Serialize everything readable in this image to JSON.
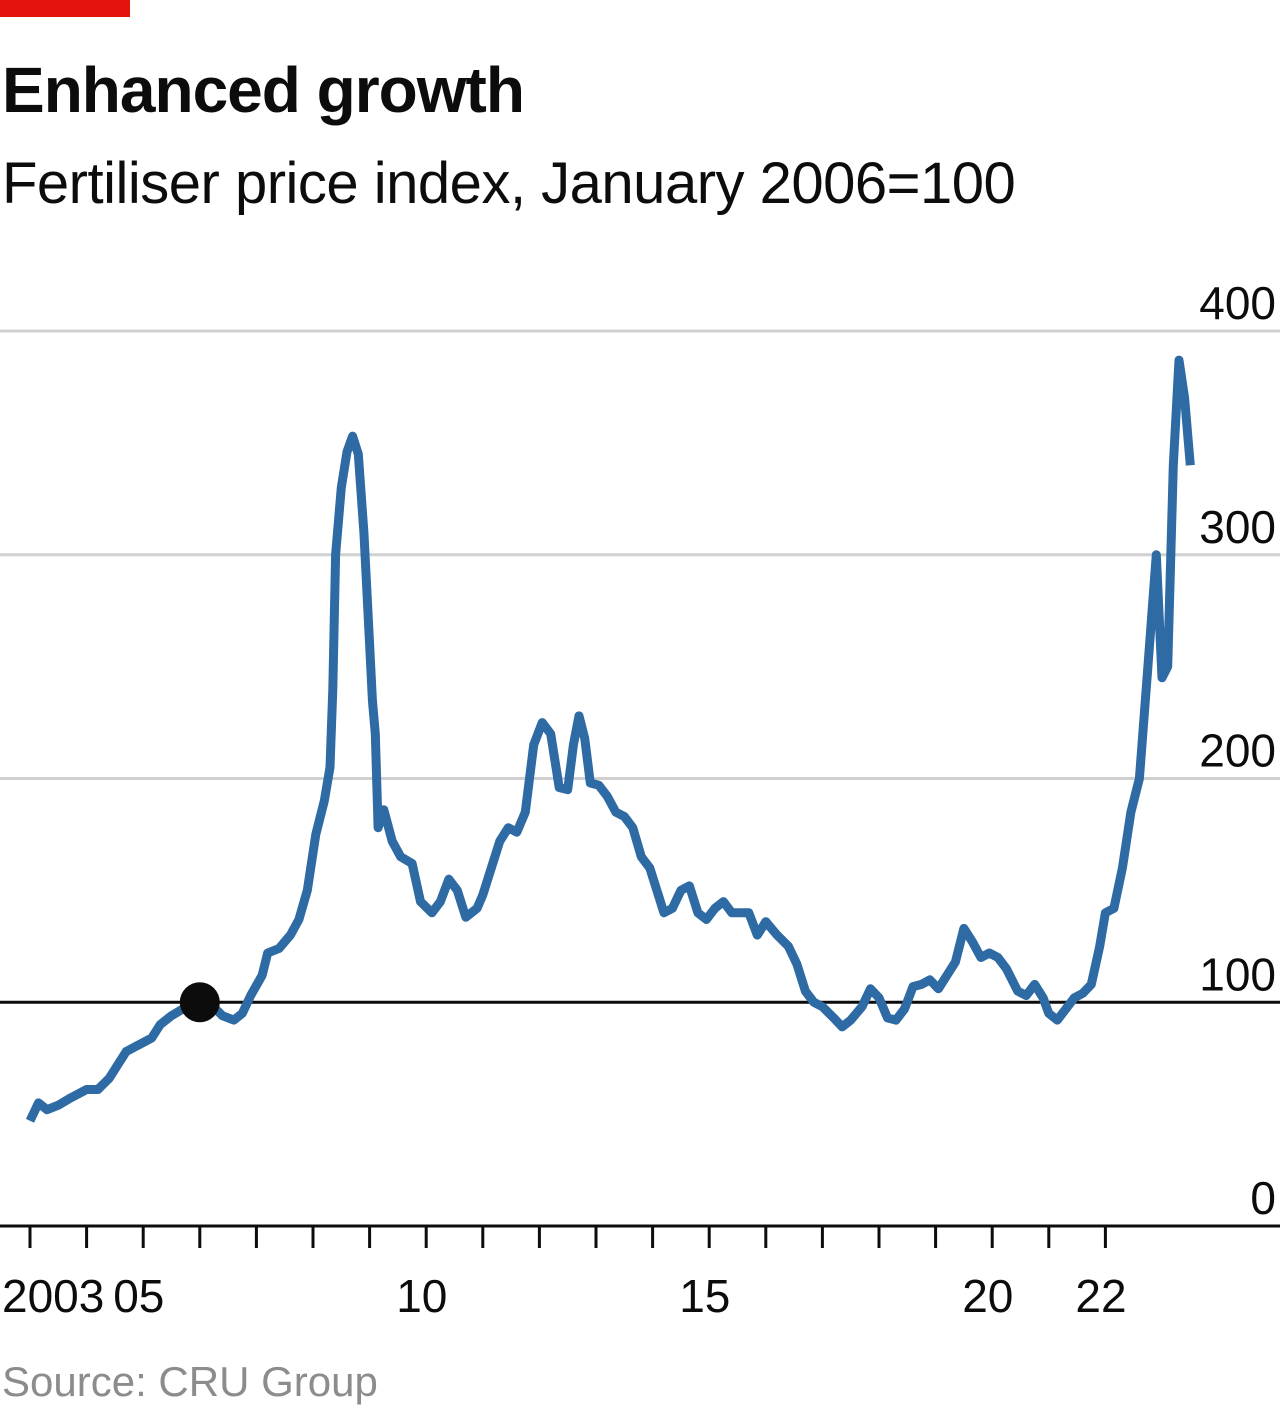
{
  "header": {
    "title": "Enhanced growth",
    "subtitle": "Fertiliser price index,  January 2006=100"
  },
  "footer": {
    "source": "Source: CRU Group"
  },
  "colors": {
    "accent": "#e3120b",
    "series": "#2e6aa3",
    "grid": "#d0d0d0",
    "baseline": "#0c0c0c",
    "source": "#8c8c8c"
  },
  "chart_data": {
    "type": "line",
    "title": "Enhanced growth",
    "subtitle": "Fertiliser price index,  January 2006=100",
    "xlabel": "",
    "ylabel": "",
    "ylim": [
      0,
      400
    ],
    "xlim": [
      2003,
      2023
    ],
    "y_ticks": [
      0,
      100,
      200,
      300,
      400
    ],
    "y_tick_labels": [
      "0",
      "100",
      "200",
      "300",
      "400"
    ],
    "x_ticks": [
      2003,
      2004,
      2005,
      2006,
      2007,
      2008,
      2009,
      2010,
      2011,
      2012,
      2013,
      2014,
      2015,
      2016,
      2017,
      2018,
      2019,
      2020,
      2021,
      2022
    ],
    "x_tick_labels": [
      {
        "x": 2003,
        "label": "2003"
      },
      {
        "x": 2005,
        "label": "05"
      },
      {
        "x": 2010,
        "label": "10"
      },
      {
        "x": 2015,
        "label": "15"
      },
      {
        "x": 2020,
        "label": "20"
      },
      {
        "x": 2022,
        "label": "22"
      }
    ],
    "grid": true,
    "highlight_point": {
      "x": 2006.0,
      "y": 100
    },
    "series": [
      {
        "color": "#2e6aa3",
        "points": [
          [
            2003.0,
            47
          ],
          [
            2003.15,
            55
          ],
          [
            2003.3,
            52
          ],
          [
            2003.5,
            54
          ],
          [
            2003.7,
            57
          ],
          [
            2003.85,
            59
          ],
          [
            2004.0,
            61
          ],
          [
            2004.2,
            61
          ],
          [
            2004.4,
            66
          ],
          [
            2004.55,
            72
          ],
          [
            2004.7,
            78
          ],
          [
            2004.85,
            80
          ],
          [
            2005.0,
            82
          ],
          [
            2005.15,
            84
          ],
          [
            2005.3,
            90
          ],
          [
            2005.5,
            94
          ],
          [
            2005.7,
            97
          ],
          [
            2005.9,
            99
          ],
          [
            2006.0,
            100
          ],
          [
            2006.2,
            99
          ],
          [
            2006.4,
            94
          ],
          [
            2006.6,
            92
          ],
          [
            2006.75,
            95
          ],
          [
            2006.9,
            103
          ],
          [
            2007.1,
            112
          ],
          [
            2007.2,
            122
          ],
          [
            2007.4,
            124
          ],
          [
            2007.6,
            130
          ],
          [
            2007.75,
            137
          ],
          [
            2007.9,
            150
          ],
          [
            2008.05,
            175
          ],
          [
            2008.2,
            190
          ],
          [
            2008.3,
            205
          ],
          [
            2008.35,
            240
          ],
          [
            2008.4,
            300
          ],
          [
            2008.5,
            330
          ],
          [
            2008.6,
            346
          ],
          [
            2008.7,
            353
          ],
          [
            2008.8,
            345
          ],
          [
            2008.9,
            310
          ],
          [
            2009.0,
            260
          ],
          [
            2009.05,
            235
          ],
          [
            2009.1,
            220
          ],
          [
            2009.15,
            178
          ],
          [
            2009.25,
            186
          ],
          [
            2009.4,
            172
          ],
          [
            2009.55,
            165
          ],
          [
            2009.75,
            162
          ],
          [
            2009.9,
            145
          ],
          [
            2010.1,
            140
          ],
          [
            2010.25,
            145
          ],
          [
            2010.4,
            155
          ],
          [
            2010.55,
            150
          ],
          [
            2010.7,
            138
          ],
          [
            2010.9,
            142
          ],
          [
            2011.0,
            148
          ],
          [
            2011.15,
            160
          ],
          [
            2011.3,
            172
          ],
          [
            2011.45,
            178
          ],
          [
            2011.6,
            176
          ],
          [
            2011.75,
            185
          ],
          [
            2011.9,
            215
          ],
          [
            2012.05,
            225
          ],
          [
            2012.2,
            220
          ],
          [
            2012.35,
            196
          ],
          [
            2012.5,
            195
          ],
          [
            2012.6,
            215
          ],
          [
            2012.7,
            228
          ],
          [
            2012.8,
            218
          ],
          [
            2012.9,
            198
          ],
          [
            2013.05,
            197
          ],
          [
            2013.2,
            192
          ],
          [
            2013.35,
            185
          ],
          [
            2013.5,
            183
          ],
          [
            2013.65,
            178
          ],
          [
            2013.8,
            165
          ],
          [
            2013.95,
            160
          ],
          [
            2014.1,
            148
          ],
          [
            2014.2,
            140
          ],
          [
            2014.35,
            142
          ],
          [
            2014.5,
            150
          ],
          [
            2014.65,
            152
          ],
          [
            2014.8,
            140
          ],
          [
            2014.95,
            137
          ],
          [
            2015.1,
            142
          ],
          [
            2015.25,
            145
          ],
          [
            2015.4,
            140
          ],
          [
            2015.55,
            140
          ],
          [
            2015.7,
            140
          ],
          [
            2015.85,
            130
          ],
          [
            2016.0,
            136
          ],
          [
            2016.2,
            130
          ],
          [
            2016.4,
            125
          ],
          [
            2016.55,
            117
          ],
          [
            2016.7,
            105
          ],
          [
            2016.85,
            100
          ],
          [
            2017.0,
            98
          ],
          [
            2017.2,
            93
          ],
          [
            2017.35,
            89
          ],
          [
            2017.5,
            92
          ],
          [
            2017.7,
            98
          ],
          [
            2017.85,
            106
          ],
          [
            2018.0,
            102
          ],
          [
            2018.15,
            93
          ],
          [
            2018.3,
            92
          ],
          [
            2018.45,
            97
          ],
          [
            2018.6,
            107
          ],
          [
            2018.75,
            108
          ],
          [
            2018.9,
            110
          ],
          [
            2019.05,
            106
          ],
          [
            2019.2,
            112
          ],
          [
            2019.35,
            118
          ],
          [
            2019.5,
            133
          ],
          [
            2019.65,
            127
          ],
          [
            2019.8,
            120
          ],
          [
            2019.95,
            122
          ],
          [
            2020.1,
            120
          ],
          [
            2020.25,
            115
          ],
          [
            2020.45,
            105
          ],
          [
            2020.6,
            103
          ],
          [
            2020.75,
            108
          ],
          [
            2020.9,
            102
          ],
          [
            2021.0,
            95
          ],
          [
            2021.15,
            92
          ],
          [
            2021.3,
            97
          ],
          [
            2021.45,
            102
          ],
          [
            2021.6,
            104
          ],
          [
            2021.75,
            108
          ],
          [
            2021.9,
            125
          ],
          [
            2022.0,
            140
          ],
          [
            2022.15,
            142
          ],
          [
            2022.3,
            160
          ],
          [
            2022.45,
            185
          ],
          [
            2022.6,
            200
          ],
          [
            2022.75,
            250
          ],
          [
            2022.9,
            300
          ],
          [
            2023.0,
            245
          ],
          [
            2023.1,
            250
          ],
          [
            2023.2,
            340
          ],
          [
            2023.3,
            387
          ],
          [
            2023.4,
            370
          ],
          [
            2023.5,
            340
          ]
        ]
      }
    ]
  }
}
